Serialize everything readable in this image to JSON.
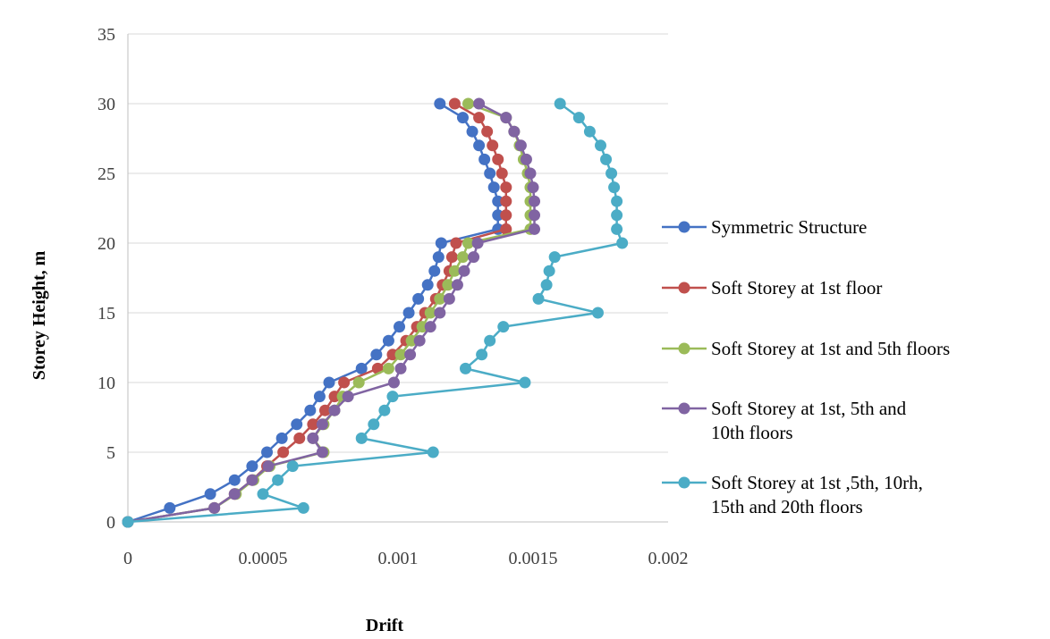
{
  "chart_data": {
    "type": "line",
    "title": "",
    "xlabel": "Drift",
    "ylabel": "Storey Height, m",
    "xlim": [
      0,
      0.002
    ],
    "ylim": [
      0,
      35
    ],
    "x_ticks": [
      "0",
      "0.0005",
      "0.001",
      "0.0015",
      "0.002"
    ],
    "y_ticks": [
      "0",
      "5",
      "10",
      "15",
      "20",
      "25",
      "30",
      "35"
    ],
    "grid": "horizontal",
    "legend_position": "right",
    "series": [
      {
        "name": "Symmetric Structure",
        "color": "#4472c4",
        "y": [
          0,
          1,
          2,
          3,
          4,
          5,
          6,
          7,
          8,
          9,
          10,
          11,
          12,
          13,
          14,
          15,
          16,
          17,
          18,
          19,
          20,
          21,
          22,
          23,
          24,
          25,
          26,
          27,
          28,
          29,
          30
        ],
        "x": [
          0,
          0.000155,
          0.000305,
          0.000395,
          0.00046,
          0.000515,
          0.00057,
          0.000625,
          0.000675,
          0.00071,
          0.000745,
          0.000865,
          0.00092,
          0.000965,
          0.001005,
          0.00104,
          0.001075,
          0.00111,
          0.001135,
          0.00115,
          0.00116,
          0.00137,
          0.00137,
          0.00137,
          0.001355,
          0.00134,
          0.00132,
          0.0013,
          0.001275,
          0.00124,
          0.001155
        ]
      },
      {
        "name": "Soft Storey at 1st floor",
        "color": "#c0504d",
        "y": [
          0,
          1,
          2,
          3,
          4,
          5,
          6,
          7,
          8,
          9,
          10,
          11,
          12,
          13,
          14,
          15,
          16,
          17,
          18,
          19,
          20,
          21,
          22,
          23,
          24,
          25,
          26,
          27,
          28,
          29,
          30
        ],
        "x": [
          0,
          0.00032,
          0.000395,
          0.00046,
          0.000515,
          0.000575,
          0.000635,
          0.000685,
          0.00073,
          0.000765,
          0.0008,
          0.000925,
          0.00098,
          0.00103,
          0.00107,
          0.0011,
          0.00114,
          0.001165,
          0.00119,
          0.0012,
          0.001215,
          0.0014,
          0.0014,
          0.0014,
          0.0014,
          0.001385,
          0.00137,
          0.00135,
          0.00133,
          0.0013,
          0.00121
        ]
      },
      {
        "name": "Soft Storey at 1st and 5th floors",
        "color": "#9bbb59",
        "y": [
          0,
          1,
          2,
          3,
          4,
          5,
          6,
          7,
          8,
          9,
          10,
          11,
          12,
          13,
          14,
          15,
          16,
          17,
          18,
          19,
          20,
          21,
          22,
          23,
          24,
          25,
          26,
          27,
          28,
          29,
          30
        ],
        "x": [
          0,
          0.00032,
          0.0004,
          0.000465,
          0.000525,
          0.000725,
          0.000685,
          0.000725,
          0.000765,
          0.000795,
          0.000855,
          0.000965,
          0.00101,
          0.00105,
          0.00109,
          0.00112,
          0.001155,
          0.001185,
          0.00121,
          0.00124,
          0.00126,
          0.00149,
          0.00149,
          0.00149,
          0.00149,
          0.00148,
          0.001465,
          0.00145,
          0.00143,
          0.0014,
          0.00126
        ]
      },
      {
        "name": "Soft Storey at 1st, 5th and 10th floors",
        "color": "#8064a2",
        "y": [
          0,
          1,
          2,
          3,
          4,
          5,
          6,
          7,
          8,
          9,
          10,
          11,
          12,
          13,
          14,
          15,
          16,
          17,
          18,
          19,
          20,
          21,
          22,
          23,
          24,
          25,
          26,
          27,
          28,
          29,
          30
        ],
        "x": [
          0,
          0.00032,
          0.000395,
          0.00046,
          0.00052,
          0.00072,
          0.000685,
          0.00072,
          0.000765,
          0.000815,
          0.000985,
          0.00101,
          0.001045,
          0.00108,
          0.00112,
          0.001155,
          0.00119,
          0.00122,
          0.001245,
          0.00128,
          0.001295,
          0.001505,
          0.001505,
          0.001505,
          0.0015,
          0.00149,
          0.001475,
          0.001455,
          0.00143,
          0.0014,
          0.0013
        ]
      },
      {
        "name": "Soft Storey at 1st ,5th, 10rh, 15th and 20th floors",
        "color": "#4bacc6",
        "y": [
          0,
          1,
          2,
          3,
          4,
          5,
          6,
          7,
          8,
          9,
          10,
          11,
          12,
          13,
          14,
          15,
          16,
          17,
          18,
          19,
          20,
          21,
          22,
          23,
          24,
          25,
          26,
          27,
          28,
          29,
          30
        ],
        "x": [
          0,
          0.00065,
          0.0005,
          0.000555,
          0.00061,
          0.00113,
          0.000865,
          0.00091,
          0.00095,
          0.00098,
          0.00147,
          0.00125,
          0.00131,
          0.00134,
          0.00139,
          0.00174,
          0.00152,
          0.00155,
          0.00156,
          0.00158,
          0.00183,
          0.00181,
          0.00181,
          0.00181,
          0.0018,
          0.00179,
          0.00177,
          0.00175,
          0.00171,
          0.00167,
          0.0016
        ]
      }
    ]
  }
}
